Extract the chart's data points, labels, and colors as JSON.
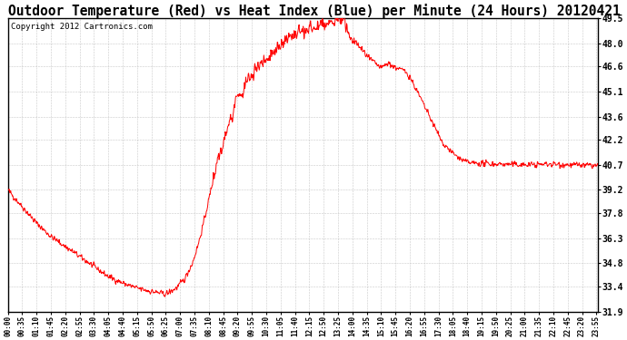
{
  "title": "Outdoor Temperature (Red) vs Heat Index (Blue) per Minute (24 Hours) 20120421",
  "copyright": "Copyright 2012 Cartronics.com",
  "ymin": 31.9,
  "ymax": 49.5,
  "yticks": [
    49.5,
    48.0,
    46.6,
    45.1,
    43.6,
    42.2,
    40.7,
    39.2,
    37.8,
    36.3,
    34.8,
    33.4,
    31.9
  ],
  "line_color_red": "#ff0000",
  "bg_color": "#ffffff",
  "grid_color": "#bbbbbb",
  "title_fontsize": 10.5,
  "copyright_fontsize": 6.5,
  "xtick_step_minutes": 35
}
